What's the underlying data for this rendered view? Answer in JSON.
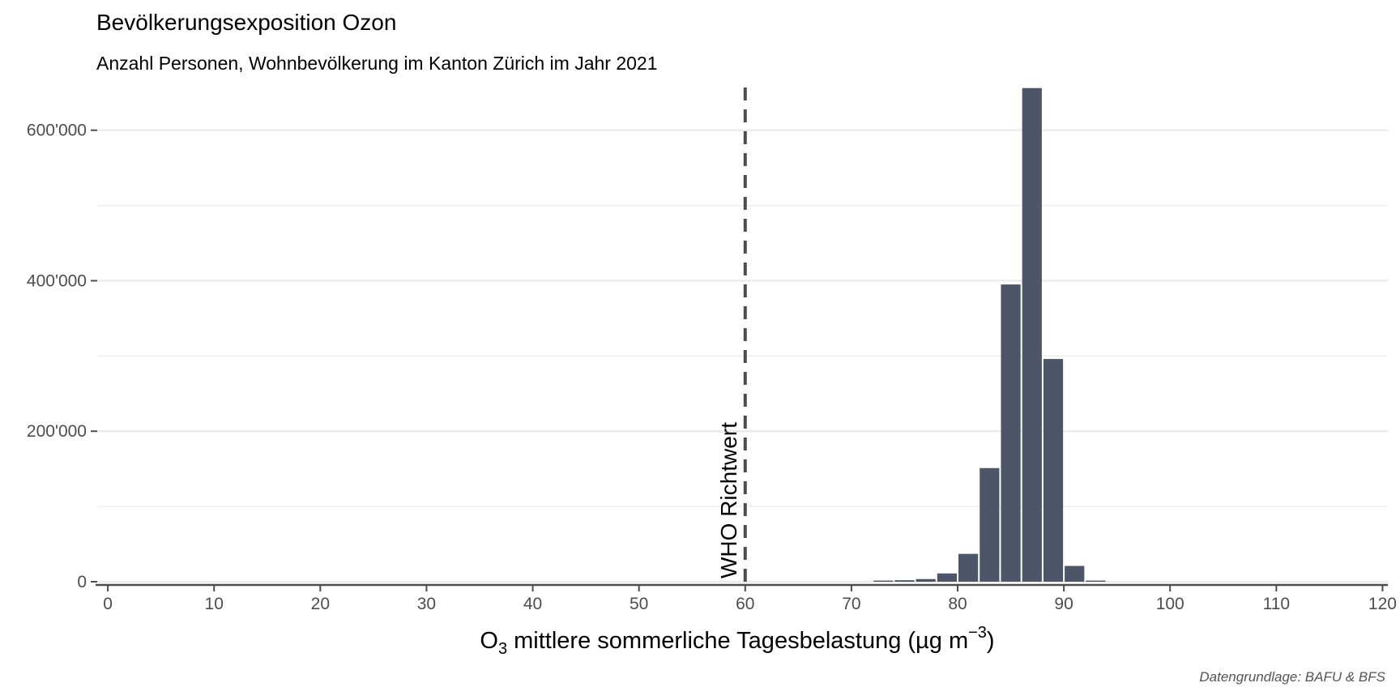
{
  "chart_data": {
    "type": "bar",
    "title": "Bevölkerungsexposition Ozon",
    "subtitle": "Anzahl Personen, Wohnbevölkerung im Kanton Zürich im Jahr 2021",
    "caption": "Datengrundlage: BAFU & BFS",
    "xlabel": {
      "prefix": "O",
      "subscript": "3",
      "middle": " mittlere sommerliche Tagesbelastung (µg m",
      "superscript": "−3",
      "suffix": ")"
    },
    "ylabel": "",
    "xlim": [
      -1,
      120.5
    ],
    "ylim": [
      0,
      660000
    ],
    "x_ticks": [
      0,
      10,
      20,
      30,
      40,
      50,
      60,
      70,
      80,
      90,
      100,
      110,
      120
    ],
    "x_tick_labels": [
      "0",
      "10",
      "20",
      "30",
      "40",
      "50",
      "60",
      "70",
      "80",
      "90",
      "100",
      "110",
      "120"
    ],
    "y_ticks": [
      0,
      200000,
      400000,
      600000
    ],
    "y_tick_labels": [
      "0",
      "200'000",
      "400'000",
      "600'000"
    ],
    "y_minor_ticks": [
      100000,
      300000,
      500000
    ],
    "bin_width": 2,
    "bins": [
      {
        "x": 73,
        "value": 1500
      },
      {
        "x": 75,
        "value": 2000
      },
      {
        "x": 77,
        "value": 3500
      },
      {
        "x": 79,
        "value": 11000
      },
      {
        "x": 81,
        "value": 37000
      },
      {
        "x": 83,
        "value": 151000
      },
      {
        "x": 85,
        "value": 395000
      },
      {
        "x": 87,
        "value": 656000
      },
      {
        "x": 89,
        "value": 296000
      },
      {
        "x": 91,
        "value": 21000
      },
      {
        "x": 93,
        "value": 1500
      }
    ],
    "reference_line": {
      "x": 60,
      "label": "WHO Richtwert",
      "style": "dashed"
    },
    "colors": {
      "bar": "#4d5668",
      "reference": "#4d4d4d",
      "grid": "#ebebeb",
      "axis": "#4d4d4d",
      "tick_label": "#4d4d4d"
    },
    "grid": true,
    "legend": "none"
  }
}
